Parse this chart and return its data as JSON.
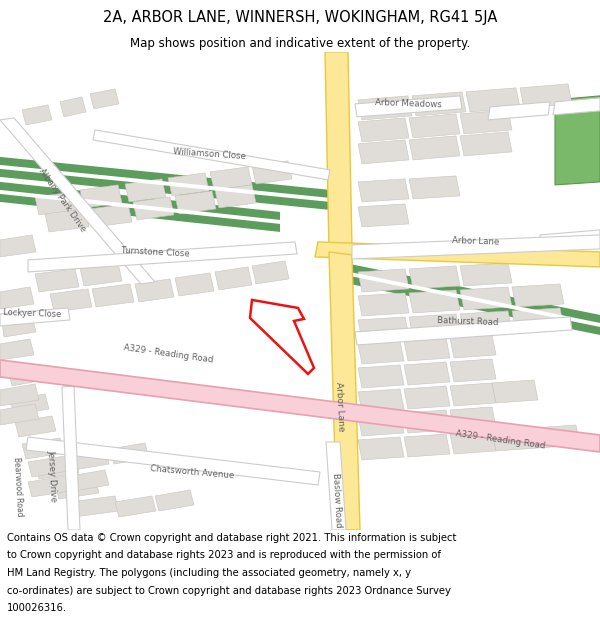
{
  "title_line1": "2A, ARBOR LANE, WINNERSH, WOKINGHAM, RG41 5JA",
  "title_line2": "Map shows position and indicative extent of the property.",
  "copyright_text": "Contains OS data © Crown copyright and database right 2021. This information is subject to Crown copyright and database rights 2023 and is reproduced with the permission of HM Land Registry. The polygons (including the associated geometry, namely x, y co-ordinates) are subject to Crown copyright and database rights 2023 Ordnance Survey 100026316.",
  "bg_color": "#f5f3f0",
  "map_bg": "#ffffff",
  "road_main_color": "#fde897",
  "road_main_outline": "#e8c840",
  "road_minor_color": "#ffffff",
  "road_minor_outline": "#cccccc",
  "road_pink_color": "#f9d0d8",
  "road_pink_outline": "#e8a0b0",
  "railway_color": "#5c9c5c",
  "railway_center": "#ffffff",
  "building_color": "#e0ddd8",
  "building_outline": "#c8c5be",
  "plot_color": "#ee1111",
  "green_park": "#7ab86a",
  "green_park_outline": "#5a9848",
  "label_color": "#606060",
  "title_fontsize": 10.5,
  "subtitle_fontsize": 8.5,
  "copyright_fontsize": 7.2,
  "figsize": [
    6.0,
    6.25
  ],
  "dpi": 100
}
